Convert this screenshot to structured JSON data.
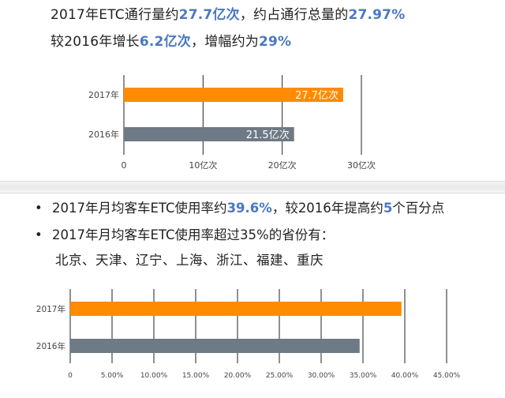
{
  "headline": {
    "line1": {
      "p1": "2017年ETC通行量约",
      "h1": "27.7亿次",
      "p2": "，约占通行总量的",
      "h2": "27.97%"
    },
    "line2": {
      "p1": "较2016年增长",
      "h1": "6.2亿次",
      "p2": "，增幅约为",
      "h2": "29%"
    }
  },
  "bullets": {
    "b1": {
      "marker": "•",
      "p1": "2017年月均客车ETC使用率约",
      "h1": "39.6%",
      "p2": "，较2016年提高约",
      "h2": "5",
      "p3": "个百分点"
    },
    "b2": {
      "marker": "•",
      "text": "2017年月均客车ETC使用率超过35%的省份有："
    },
    "provinces": "北京、天津、辽宁、上海、浙江、福建、重庆"
  },
  "colors": {
    "bar_2017": "#ff8b00",
    "bar_2016": "#6e7a86",
    "highlight": "#4a78c0",
    "grid": "#222222"
  },
  "chart_data": [
    {
      "type": "bar",
      "orientation": "horizontal",
      "categories": [
        "2017年",
        "2016年"
      ],
      "values": [
        27.7,
        21.5
      ],
      "data_labels": [
        "27.7亿次",
        "21.5亿次"
      ],
      "xlim": [
        0,
        30
      ],
      "xticks": [
        0,
        10,
        20,
        30
      ],
      "xtick_labels": [
        "0",
        "10亿次",
        "20亿次",
        "30亿次"
      ],
      "grid": true
    },
    {
      "type": "bar",
      "orientation": "horizontal",
      "categories": [
        "2017年",
        "2016年"
      ],
      "values": [
        39.6,
        34.6
      ],
      "xlim": [
        0,
        45
      ],
      "xticks": [
        0,
        5,
        10,
        15,
        20,
        25,
        30,
        35,
        40,
        45
      ],
      "xtick_labels": [
        "0",
        "5.00%",
        "10.00%",
        "15.00%",
        "20.00%",
        "25.00%",
        "30.00%",
        "35.00%",
        "40.00%",
        "45.00%"
      ],
      "grid": true
    }
  ]
}
